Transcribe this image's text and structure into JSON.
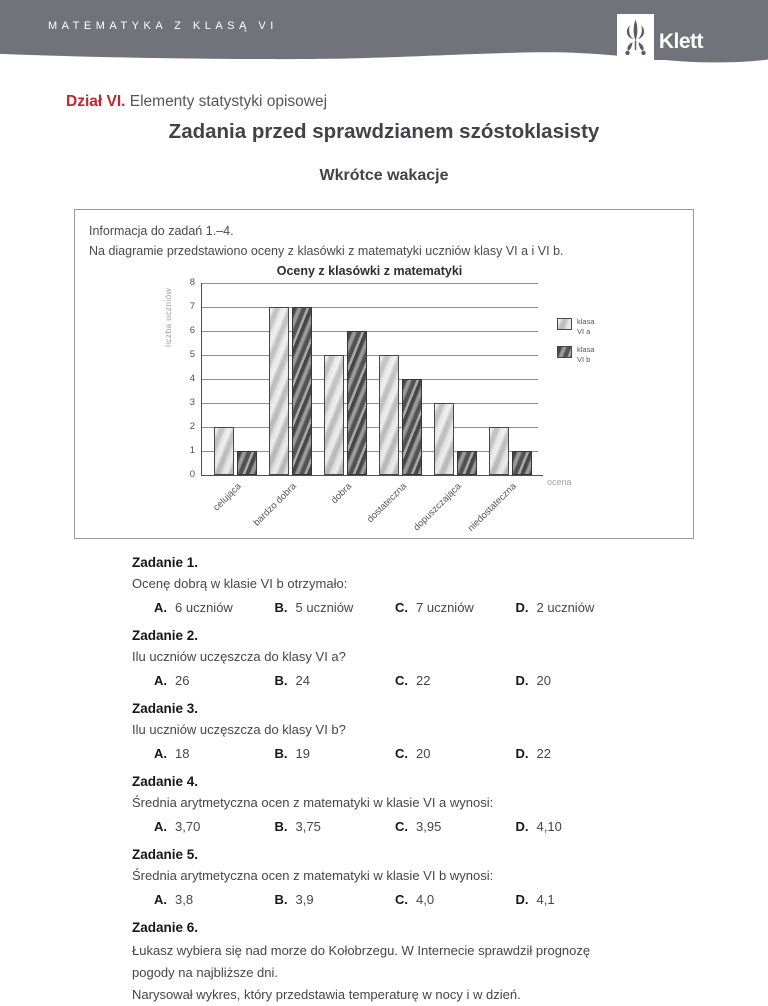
{
  "header": {
    "series_title": "MATEMATYKA Z KLASĄ VI",
    "logo_text": "Klett",
    "bar_color": "#70747a"
  },
  "page": {
    "section_label": "Dział VI.",
    "section_title": "Elementy statystyki opisowej",
    "main_title": "Zadania przed sprawdzianem szóstoklasisty",
    "subtitle": "Wkrótce wakacje",
    "accent_color": "#c1272d"
  },
  "info_box": {
    "line1": "Informacja do zadań 1.–4.",
    "line2": "Na diagramie przedstawiono oceny z klasówki z matematyki uczniów klasy VI a i VI b."
  },
  "chart_data": {
    "type": "bar",
    "title": "Oceny z klasówki z matematyki",
    "categories": [
      "celująca",
      "bardzo dobra",
      "dobra",
      "dostateczna",
      "dopuszczająca",
      "niedostateczna"
    ],
    "series": [
      {
        "name": "klasa VI a",
        "values": [
          2,
          7,
          5,
          5,
          3,
          2
        ],
        "color": "#d9d9d9"
      },
      {
        "name": "klasa VI b",
        "values": [
          1,
          7,
          6,
          4,
          1,
          1
        ],
        "color": "#5e5e5e"
      }
    ],
    "legend": [
      {
        "line1": "klasa",
        "line2": "VI a"
      },
      {
        "line1": "klasa",
        "line2": "VI b"
      }
    ],
    "xlabel": "ocena",
    "ylabel": "liczba uczniów",
    "ylim": [
      0,
      8
    ],
    "ytick_step": 1,
    "grid": true,
    "legend_position": "right"
  },
  "questions": [
    {
      "number": "Zadanie 1.",
      "text": "Ocenę dobrą w klasie VI b otrzymało:",
      "options": [
        {
          "letter": "A.",
          "value": "6 uczniów"
        },
        {
          "letter": "B.",
          "value": "5 uczniów"
        },
        {
          "letter": "C.",
          "value": "7 uczniów"
        },
        {
          "letter": "D.",
          "value": "2 uczniów"
        }
      ]
    },
    {
      "number": "Zadanie 2.",
      "text": "Ilu uczniów uczęszcza do klasy VI a?",
      "options": [
        {
          "letter": "A.",
          "value": "26"
        },
        {
          "letter": "B.",
          "value": "24"
        },
        {
          "letter": "C.",
          "value": "22"
        },
        {
          "letter": "D.",
          "value": "20"
        }
      ]
    },
    {
      "number": "Zadanie 3.",
      "text": "Ilu uczniów uczęszcza do klasy VI b?",
      "options": [
        {
          "letter": "A.",
          "value": "18"
        },
        {
          "letter": "B.",
          "value": "19"
        },
        {
          "letter": "C.",
          "value": "20"
        },
        {
          "letter": "D.",
          "value": "22"
        }
      ]
    },
    {
      "number": "Zadanie 4.",
      "text": "Średnia arytmetyczna ocen z matematyki w klasie VI a wynosi:",
      "options": [
        {
          "letter": "A.",
          "value": "3,70"
        },
        {
          "letter": "B.",
          "value": "3,75"
        },
        {
          "letter": "C.",
          "value": "3,95"
        },
        {
          "letter": "D.",
          "value": "4,10"
        }
      ]
    },
    {
      "number": "Zadanie 5.",
      "text": "Średnia arytmetyczna ocen z matematyki w klasie VI b wynosi:",
      "options": [
        {
          "letter": "A.",
          "value": "3,8"
        },
        {
          "letter": "B.",
          "value": "3,9"
        },
        {
          "letter": "C.",
          "value": "4,0"
        },
        {
          "letter": "D.",
          "value": "4,1"
        }
      ]
    },
    {
      "number": "Zadanie 6.",
      "text": "Łukasz wybiera się nad morze do Kołobrzegu. W Internecie sprawdził prognozę pogody na najbliższe dni.",
      "text2": "Narysował wykres, który przedstawia temperaturę w nocy i w dzień.",
      "options": []
    }
  ]
}
